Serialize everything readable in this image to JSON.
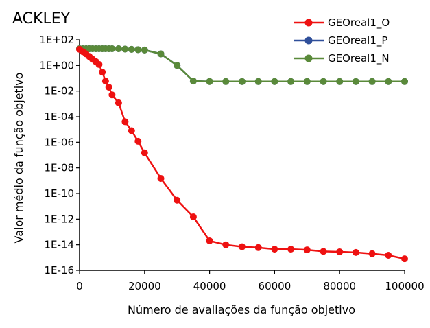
{
  "chart_data": {
    "type": "line",
    "title": "ACKLEY",
    "xlabel": "Número de avaliações da função objetivo",
    "ylabel": "Valor médio da função objetivo",
    "xlim": [
      0,
      100000
    ],
    "ylim": [
      1e-16,
      100.0
    ],
    "yscale": "log",
    "grid": false,
    "legend_position": "top-right",
    "x_ticks": [
      0,
      20000,
      40000,
      60000,
      80000,
      100000
    ],
    "x_tick_labels": [
      "0",
      "20000",
      "40000",
      "60000",
      "80000",
      "100000"
    ],
    "y_ticks": [
      100.0,
      1.0,
      0.01,
      0.0001,
      1e-06,
      1e-08,
      1e-10,
      1e-12,
      1e-14,
      1e-16
    ],
    "y_tick_labels": [
      "1E+02",
      "1E+00",
      "1E-02",
      "1E-04",
      "1E-06",
      "1E-08",
      "1E-10",
      "1E-12",
      "1E-14",
      "1E-16"
    ],
    "series": [
      {
        "name": "GEOreal1_P",
        "color": "#2f4f9a",
        "x": [
          0,
          1000,
          2000,
          3000,
          4000,
          5000,
          6000,
          7000,
          8000,
          9000,
          10000,
          12000,
          14000,
          16000,
          18000,
          20000,
          25000,
          30000,
          35000,
          40000,
          45000,
          50000,
          55000,
          60000,
          65000,
          70000,
          75000,
          80000,
          85000,
          90000,
          95000,
          100000
        ],
        "y": [
          20,
          20,
          20,
          20,
          20,
          20,
          20,
          20,
          20,
          20,
          20,
          20,
          19,
          18,
          17,
          16,
          8,
          1.0,
          0.06,
          0.056,
          0.055,
          0.055,
          0.055,
          0.055,
          0.055,
          0.055,
          0.055,
          0.055,
          0.055,
          0.055,
          0.055,
          0.055
        ]
      },
      {
        "name": "GEOreal1_N",
        "color": "#5a8a3a",
        "x": [
          0,
          1000,
          2000,
          3000,
          4000,
          5000,
          6000,
          7000,
          8000,
          9000,
          10000,
          12000,
          14000,
          16000,
          18000,
          20000,
          25000,
          30000,
          35000,
          40000,
          45000,
          50000,
          55000,
          60000,
          65000,
          70000,
          75000,
          80000,
          85000,
          90000,
          95000,
          100000
        ],
        "y": [
          20,
          20,
          20,
          20,
          20,
          20,
          20,
          20,
          20,
          20,
          20,
          20,
          19,
          18,
          17,
          16,
          8,
          1.0,
          0.06,
          0.056,
          0.055,
          0.055,
          0.055,
          0.055,
          0.055,
          0.055,
          0.055,
          0.055,
          0.055,
          0.055,
          0.055,
          0.055
        ]
      },
      {
        "name": "GEOreal1_O",
        "color": "#ee1111",
        "x": [
          0,
          1000,
          2000,
          3000,
          4000,
          5000,
          6000,
          7000,
          8000,
          9000,
          10000,
          12000,
          14000,
          16000,
          18000,
          20000,
          25000,
          30000,
          35000,
          40000,
          45000,
          50000,
          55000,
          60000,
          65000,
          70000,
          75000,
          80000,
          85000,
          90000,
          95000,
          100000
        ],
        "y": [
          18,
          12,
          8,
          5,
          3,
          2,
          1.2,
          0.3,
          0.06,
          0.02,
          0.005,
          0.0012,
          4e-05,
          8e-06,
          1.2e-06,
          1.5e-07,
          1.5e-09,
          3e-11,
          1.5e-12,
          2e-14,
          1e-14,
          7e-15,
          6e-15,
          4.5e-15,
          4.5e-15,
          4e-15,
          3e-15,
          2.8e-15,
          2.5e-15,
          2e-15,
          1.5e-15,
          8e-16
        ]
      }
    ],
    "legend_order": [
      "GEOreal1_O",
      "GEOreal1_P",
      "GEOreal1_N"
    ]
  }
}
